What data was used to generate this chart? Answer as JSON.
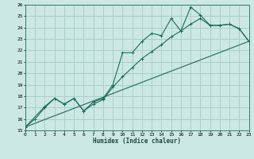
{
  "xlabel": "Humidex (Indice chaleur)",
  "xlim": [
    0,
    23
  ],
  "ylim": [
    15,
    26
  ],
  "bg_color": "#cce8e4",
  "grid_color": "#aacfca",
  "line_color": "#1a6b5a",
  "series1_x": [
    0,
    1,
    2,
    3,
    4,
    5,
    6,
    7,
    8,
    9,
    10,
    11,
    12,
    13,
    14,
    15,
    16,
    17,
    18,
    19,
    20,
    21,
    22,
    23
  ],
  "series1_y": [
    15.3,
    16.0,
    17.0,
    17.8,
    17.3,
    17.8,
    16.7,
    17.5,
    17.8,
    19.0,
    21.8,
    21.8,
    22.8,
    23.5,
    23.3,
    24.8,
    23.7,
    25.8,
    25.1,
    24.2,
    24.2,
    24.3,
    23.9,
    22.8
  ],
  "series2_x": [
    0,
    2,
    3,
    4,
    5,
    6,
    7,
    8,
    9,
    10,
    11,
    12,
    13,
    14,
    15,
    16,
    17,
    18,
    19,
    20,
    21,
    22,
    23
  ],
  "series2_y": [
    15.3,
    17.1,
    17.8,
    17.3,
    17.8,
    16.7,
    17.3,
    17.7,
    18.8,
    19.7,
    20.5,
    21.3,
    21.9,
    22.5,
    23.2,
    23.7,
    24.3,
    24.8,
    24.2,
    24.2,
    24.3,
    23.9,
    22.8
  ],
  "series3_x": [
    0,
    23
  ],
  "series3_y": [
    15.3,
    22.8
  ],
  "xticks": [
    0,
    1,
    2,
    3,
    4,
    5,
    6,
    7,
    8,
    9,
    10,
    11,
    12,
    13,
    14,
    15,
    16,
    17,
    18,
    19,
    20,
    21,
    22,
    23
  ],
  "yticks": [
    15,
    16,
    17,
    18,
    19,
    20,
    21,
    22,
    23,
    24,
    25,
    26
  ]
}
